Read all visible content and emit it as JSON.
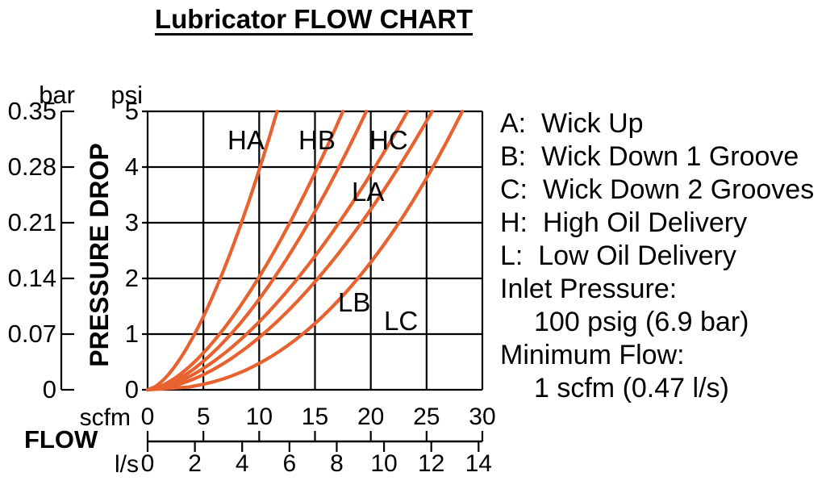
{
  "title": "Lubricator FLOW CHART",
  "colors": {
    "curve": "#E7622E",
    "text": "#000000",
    "background": "#FFFFFF"
  },
  "chart_data": {
    "type": "line",
    "title": "Lubricator FLOW CHART",
    "grid": true,
    "x_axis": {
      "label": "FLOW",
      "primary_unit": "scfm",
      "primary_ticks": [
        0,
        5,
        10,
        15,
        20,
        25,
        30
      ],
      "primary_range": [
        0,
        30
      ],
      "secondary_unit": "l/s",
      "secondary_ticks": [
        0,
        2,
        4,
        6,
        8,
        10,
        12,
        14
      ],
      "scfm_per_ls": 2.1186
    },
    "y_axis": {
      "label": "PRESSURE DROP",
      "primary_unit": "psi",
      "primary_ticks": [
        5,
        4,
        3,
        2,
        1,
        0
      ],
      "primary_range": [
        0,
        5
      ],
      "secondary_unit": "bar",
      "secondary_ticks": [
        "0.35",
        "0.28",
        "0.21",
        "0.14",
        "0.07",
        "0"
      ]
    },
    "series": [
      {
        "name": "HA",
        "psi_points": [
          1,
          2,
          3,
          4,
          5
        ],
        "flow_scfm": [
          4.2,
          6.5,
          8.4,
          10.1,
          11.6
        ],
        "q_at_5psi": 11.6,
        "power_exp": 0.63
      },
      {
        "name": "HB",
        "psi_points": [
          1,
          2,
          3,
          4,
          5
        ],
        "flow_scfm": [
          6.5,
          9.9,
          12.8,
          15.2,
          17.5
        ],
        "q_at_5psi": 17.5,
        "power_exp": 0.62
      },
      {
        "name": "HC",
        "psi_points": [
          1,
          2,
          3,
          4,
          5
        ],
        "flow_scfm": [
          7.5,
          11.3,
          14.4,
          17.1,
          19.6
        ],
        "q_at_5psi": 19.6,
        "power_exp": 0.6
      },
      {
        "name": "LA",
        "psi_points": [
          1,
          2,
          3,
          4,
          5
        ],
        "flow_scfm": [
          8.9,
          13.5,
          17.2,
          20.4,
          23.3
        ],
        "q_at_5psi": 23.3,
        "power_exp": 0.6
      },
      {
        "name": "LB",
        "psi_points": [
          1,
          2,
          3,
          4,
          5
        ],
        "flow_scfm": [
          10.4,
          15.3,
          19.2,
          22.5,
          25.5
        ],
        "q_at_5psi": 25.5,
        "power_exp": 0.56
      },
      {
        "name": "LC",
        "psi_points": [
          1,
          2,
          3,
          4,
          5
        ],
        "flow_scfm": [
          13.9,
          18.8,
          22.5,
          25.6,
          28.2
        ],
        "q_at_5psi": 28.2,
        "power_exp": 0.44
      }
    ],
    "legend": [
      {
        "text": "A:  Wick Up",
        "indent": false
      },
      {
        "text": "B:  Wick Down 1 Groove",
        "indent": false
      },
      {
        "text": "C:  Wick Down 2 Grooves",
        "indent": false
      },
      {
        "text": "H:  High Oil Delivery",
        "indent": false
      },
      {
        "text": "L:  Low Oil Delivery",
        "indent": false
      },
      {
        "text": "Inlet Pressure:",
        "indent": false
      },
      {
        "text": "100 psig (6.9 bar)",
        "indent": true
      },
      {
        "text": "Minimum Flow:",
        "indent": false
      },
      {
        "text": "1 scfm (0.47 l/s)",
        "indent": true
      }
    ]
  }
}
